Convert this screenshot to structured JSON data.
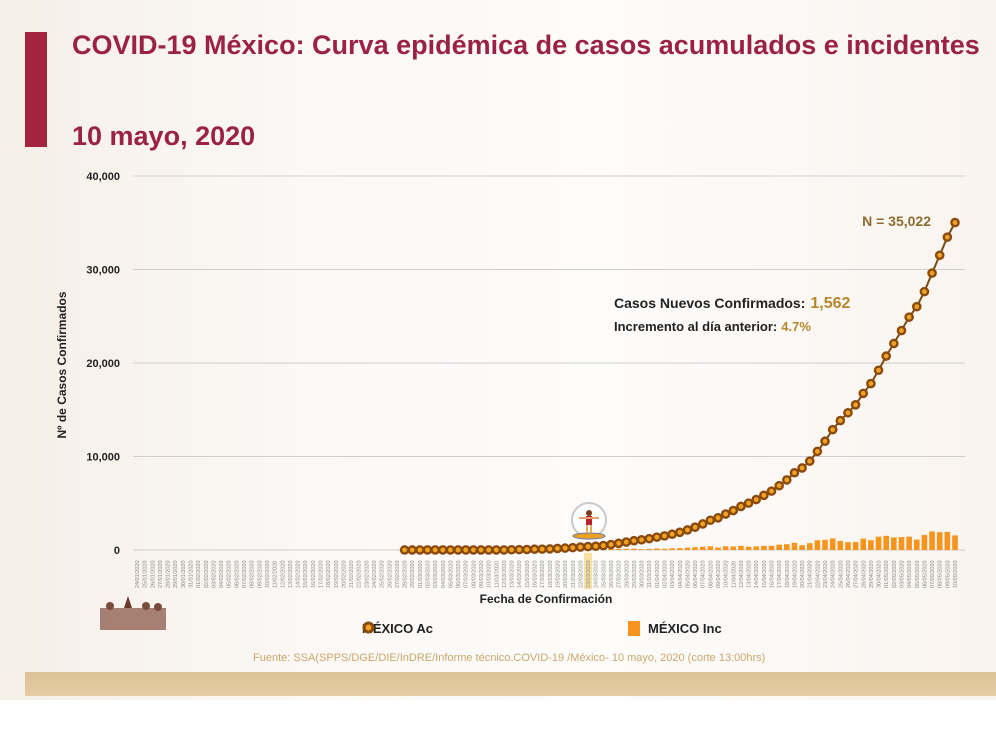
{
  "header": {
    "title": "COVID-19 México: Curva epidémica de casos acumulados e incidentes",
    "date": "10 mayo, 2020"
  },
  "annotations": {
    "total": "N = 35,022",
    "new_cases_label": "Casos Nuevos Confirmados:",
    "new_cases_value": "1,562",
    "increase_label": "Incremento al día anterior:",
    "increase_value": "4.7%"
  },
  "source": "Fuente: SSA(SPPS/DGE/DIE/InDRE/Informe técnico.COVID-19 /México- 10 mayo, 2020 (corte 13:00hrs)",
  "colors": {
    "title": "#9b2247",
    "cumulative_line": "#7a4a0e",
    "cumulative_marker": "#f0a323",
    "incident_bar": "#f7941d",
    "annotation_value": "#b8862b"
  },
  "chart_data": {
    "type": "bar+line",
    "title": "",
    "xlabel": "Fecha de Confirmación",
    "ylabel": "Nº de Casos Confirmados",
    "ylim": [
      0,
      40000
    ],
    "yticks": [
      0,
      10000,
      20000,
      30000,
      40000
    ],
    "ytick_labels": [
      "0",
      "10,000",
      "20,000",
      "30,000",
      "40,000"
    ],
    "grid": true,
    "legend": "bottom",
    "highlight_date": "23/03/2020",
    "x": [
      "24/01/2020",
      "25/01/2020",
      "26/01/2020",
      "27/01/2020",
      "28/01/2020",
      "29/01/2020",
      "30/01/2020",
      "31/01/2020",
      "01/02/2020",
      "02/02/2020",
      "03/02/2020",
      "04/02/2020",
      "05/02/2020",
      "06/02/2020",
      "07/02/2020",
      "08/02/2020",
      "09/02/2020",
      "10/02/2020",
      "11/02/2020",
      "12/02/2020",
      "13/02/2020",
      "14/02/2020",
      "15/02/2020",
      "16/02/2020",
      "17/02/2020",
      "18/02/2020",
      "19/02/2020",
      "20/02/2020",
      "21/02/2020",
      "22/02/2020",
      "23/02/2020",
      "24/02/2020",
      "25/02/2020",
      "26/02/2020",
      "27/02/2020",
      "28/02/2020",
      "29/02/2020",
      "01/03/2020",
      "02/03/2020",
      "03/03/2020",
      "04/03/2020",
      "05/03/2020",
      "06/03/2020",
      "07/03/2020",
      "08/03/2020",
      "09/03/2020",
      "10/03/2020",
      "11/03/2020",
      "12/03/2020",
      "13/03/2020",
      "14/03/2020",
      "15/03/2020",
      "16/03/2020",
      "17/03/2020",
      "18/03/2020",
      "19/03/2020",
      "20/03/2020",
      "21/03/2020",
      "22/03/2020",
      "23/03/2020",
      "24/03/2020",
      "25/03/2020",
      "26/03/2020",
      "27/03/2020",
      "28/03/2020",
      "29/03/2020",
      "30/03/2020",
      "31/03/2020",
      "01/04/2020",
      "02/04/2020",
      "03/04/2020",
      "04/04/2020",
      "05/04/2020",
      "06/04/2020",
      "07/04/2020",
      "08/04/2020",
      "09/04/2020",
      "10/04/2020",
      "11/04/2020",
      "12/04/2020",
      "13/04/2020",
      "14/04/2020",
      "15/04/2020",
      "16/04/2020",
      "17/04/2020",
      "18/04/2020",
      "19/04/2020",
      "20/04/2020",
      "21/04/2020",
      "22/04/2020",
      "23/04/2020",
      "24/04/2020",
      "25/04/2020",
      "26/04/2020",
      "27/04/2020",
      "28/04/2020",
      "29/04/2020",
      "30/04/2020",
      "01/05/2020",
      "02/05/2020",
      "03/05/2020",
      "04/05/2020",
      "05/05/2020",
      "06/05/2020",
      "07/05/2020",
      "08/05/2020",
      "09/05/2020",
      "10/05/2020"
    ],
    "series": [
      {
        "name": "MÉXICO Ac",
        "type": "line",
        "values": [
          null,
          null,
          null,
          null,
          null,
          null,
          null,
          null,
          null,
          null,
          null,
          null,
          null,
          null,
          null,
          null,
          null,
          null,
          null,
          null,
          null,
          null,
          null,
          null,
          null,
          null,
          null,
          null,
          null,
          null,
          null,
          null,
          null,
          null,
          null,
          2,
          4,
          5,
          5,
          5,
          5,
          5,
          6,
          7,
          7,
          7,
          7,
          8,
          12,
          26,
          41,
          53,
          82,
          93,
          118,
          164,
          203,
          251,
          316,
          367,
          405,
          475,
          585,
          717,
          848,
          993,
          1094,
          1215,
          1378,
          1510,
          1688,
          1890,
          2143,
          2439,
          2785,
          3181,
          3441,
          3844,
          4219,
          4661,
          5014,
          5399,
          5847,
          6297,
          6875,
          7497,
          8261,
          8772,
          9501,
          10544,
          11633,
          12872,
          13842,
          14677,
          15529,
          16752,
          17799,
          19224,
          20739,
          22088,
          23471,
          24905,
          26025,
          27634,
          29616,
          31522,
          33460,
          35022
        ]
      },
      {
        "name": "MÉXICO Inc",
        "type": "bar",
        "values": [
          0,
          0,
          0,
          0,
          0,
          0,
          0,
          0,
          0,
          0,
          0,
          0,
          0,
          0,
          0,
          0,
          0,
          0,
          0,
          0,
          0,
          0,
          0,
          0,
          0,
          0,
          0,
          0,
          0,
          0,
          0,
          0,
          0,
          0,
          0,
          2,
          2,
          1,
          0,
          0,
          0,
          0,
          1,
          1,
          0,
          0,
          0,
          1,
          4,
          14,
          15,
          12,
          29,
          11,
          25,
          46,
          39,
          48,
          65,
          51,
          38,
          70,
          110,
          132,
          131,
          145,
          101,
          121,
          163,
          132,
          178,
          202,
          253,
          296,
          346,
          396,
          260,
          403,
          375,
          442,
          353,
          385,
          448,
          450,
          578,
          622,
          764,
          511,
          729,
          1043,
          1089,
          1239,
          970,
          835,
          852,
          1223,
          1047,
          1425,
          1515,
          1349,
          1383,
          1434,
          1120,
          1609,
          1982,
          1906,
          1938,
          1562
        ]
      }
    ]
  }
}
